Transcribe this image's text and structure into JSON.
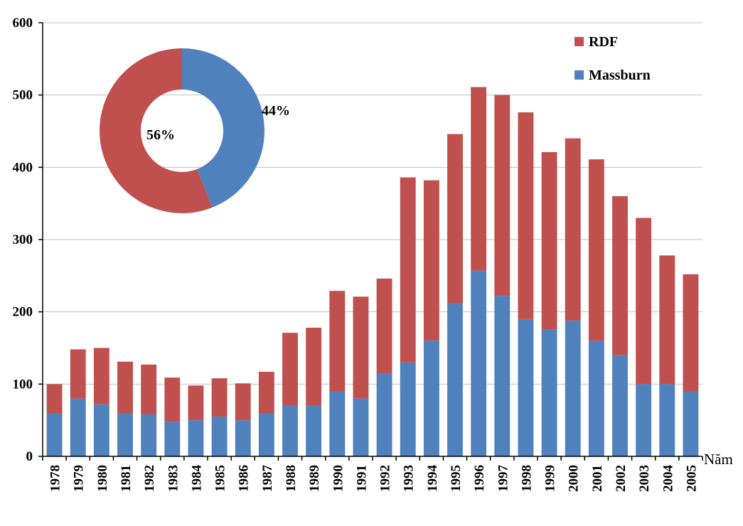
{
  "chart_data": [
    {
      "type": "bar",
      "stacked": true,
      "categories": [
        "1978",
        "1979",
        "1980",
        "1981",
        "1982",
        "1983",
        "1984",
        "1985",
        "1986",
        "1987",
        "1988",
        "1989",
        "1990",
        "1991",
        "1992",
        "1993",
        "1994",
        "1995",
        "1996",
        "1997",
        "1998",
        "1999",
        "2000",
        "2001",
        "2002",
        "2003",
        "2004",
        "2005"
      ],
      "series": [
        {
          "name": "Massburn",
          "color": "#4f81bd",
          "values": [
            60,
            80,
            72,
            60,
            58,
            48,
            50,
            55,
            50,
            60,
            70,
            70,
            90,
            80,
            115,
            130,
            160,
            212,
            257,
            222,
            190,
            176,
            188,
            160,
            140,
            100,
            100,
            90
          ]
        },
        {
          "name": "RDF",
          "color": "#c0504d",
          "values": [
            40,
            68,
            78,
            71,
            69,
            61,
            48,
            53,
            51,
            57,
            101,
            108,
            139,
            141,
            131,
            256,
            222,
            234,
            254,
            278,
            286,
            245,
            252,
            251,
            220,
            230,
            178,
            162
          ]
        }
      ],
      "xlabel": "Năm",
      "ylabel": "",
      "ylim": [
        0,
        600
      ],
      "yticks": [
        0,
        100,
        200,
        300,
        400,
        500,
        600
      ],
      "grid": true,
      "legend": {
        "placement": "top-right",
        "entries": [
          "RDF",
          "Massburn"
        ]
      }
    },
    {
      "type": "pie",
      "donut": true,
      "slices": [
        {
          "name": "Massburn",
          "value": 44,
          "label": "44%",
          "color": "#4f81bd"
        },
        {
          "name": "RDF",
          "value": 56,
          "label": "56%",
          "color": "#c0504d"
        }
      ]
    }
  ]
}
